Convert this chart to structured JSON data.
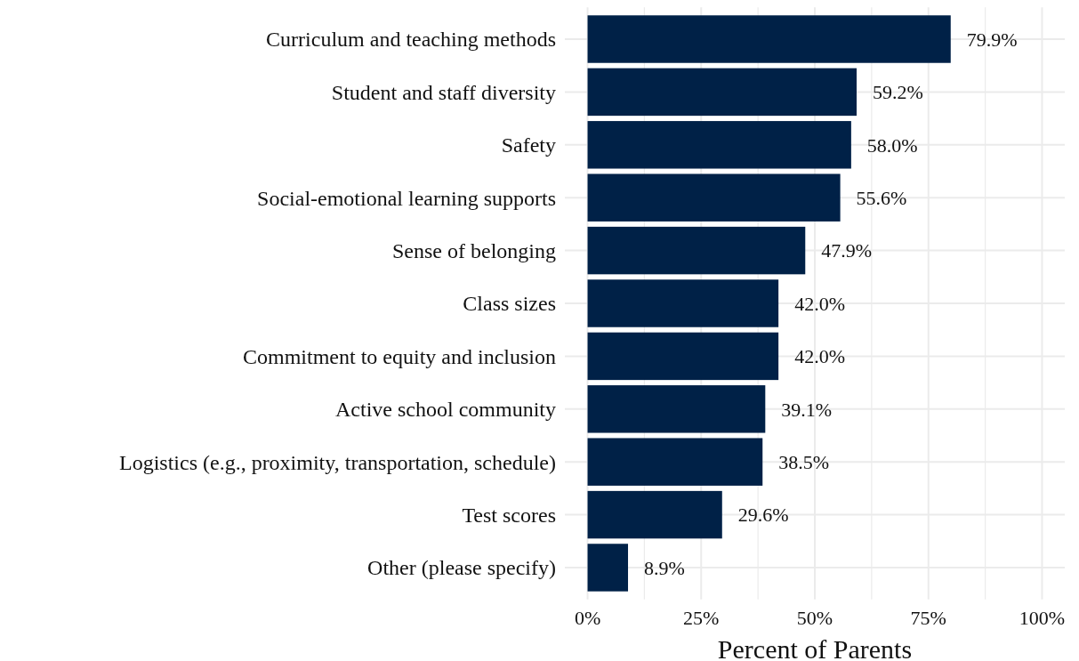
{
  "chart_data": {
    "type": "bar",
    "orientation": "horizontal",
    "xlabel": "Percent of Parents",
    "categories": [
      "Curriculum and teaching methods",
      "Student and staff diversity",
      "Safety",
      "Social-emotional learning supports",
      "Sense of belonging",
      "Class sizes",
      "Commitment to equity and inclusion",
      "Active school community",
      "Logistics (e.g., proximity, transportation, schedule)",
      "Test scores",
      "Other (please specify)"
    ],
    "values": [
      79.9,
      59.2,
      58.0,
      55.6,
      47.9,
      42.0,
      42.0,
      39.1,
      38.5,
      29.6,
      8.9
    ],
    "value_labels": [
      "79.9%",
      "59.2%",
      "58.0%",
      "55.6%",
      "47.9%",
      "42.0%",
      "42.0%",
      "39.1%",
      "38.5%",
      "29.6%",
      "8.9%"
    ],
    "color": "#002147",
    "xlim": [
      -5,
      105
    ],
    "xticks": [
      {
        "value": 0,
        "label": "0%"
      },
      {
        "value": 12.5,
        "label": null
      },
      {
        "value": 25,
        "label": "25%"
      },
      {
        "value": 37.5,
        "label": null
      },
      {
        "value": 50,
        "label": "50%"
      },
      {
        "value": 62.5,
        "label": null
      },
      {
        "value": 75,
        "label": "75%"
      },
      {
        "value": 87.5,
        "label": null
      },
      {
        "value": 100,
        "label": "100%"
      }
    ],
    "grid": true
  }
}
